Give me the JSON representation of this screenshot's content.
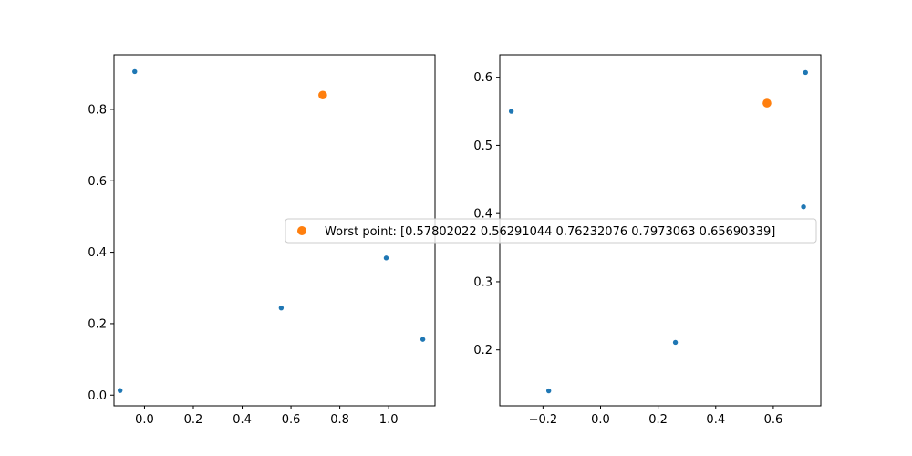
{
  "chart_data": [
    {
      "type": "scatter",
      "xlim": [
        -0.125,
        1.19
      ],
      "ylim": [
        -0.03,
        0.953
      ],
      "xticks": [
        "0.0",
        "0.2",
        "0.4",
        "0.6",
        "0.8",
        "1.0"
      ],
      "yticks": [
        "0.0",
        "0.2",
        "0.4",
        "0.6",
        "0.8"
      ],
      "grid": false,
      "series": [
        {
          "color": "#1f77b4",
          "points": [
            {
              "x": -0.1,
              "y": 0.013
            },
            {
              "x": -0.04,
              "y": 0.906
            },
            {
              "x": 0.56,
              "y": 0.244
            },
            {
              "x": 0.99,
              "y": 0.384
            },
            {
              "x": 1.14,
              "y": 0.156
            }
          ]
        },
        {
          "color": "#ff7f0e",
          "points": [
            {
              "x": 0.73,
              "y": 0.84
            }
          ]
        }
      ]
    },
    {
      "type": "scatter",
      "xlim": [
        -0.35,
        0.765
      ],
      "ylim": [
        0.118,
        0.633
      ],
      "xticks": [
        "-0.2",
        "0.0",
        "0.2",
        "0.4",
        "0.6"
      ],
      "yticks": [
        "0.2",
        "0.3",
        "0.4",
        "0.5",
        "0.6"
      ],
      "grid": false,
      "series": [
        {
          "color": "#1f77b4",
          "points": [
            {
              "x": -0.31,
              "y": 0.55
            },
            {
              "x": -0.18,
              "y": 0.14
            },
            {
              "x": 0.26,
              "y": 0.211
            },
            {
              "x": 0.705,
              "y": 0.41
            },
            {
              "x": 0.712,
              "y": 0.607
            }
          ]
        },
        {
          "color": "#ff7f0e",
          "points": [
            {
              "x": 0.578,
              "y": 0.562
            }
          ]
        }
      ]
    }
  ],
  "legend": {
    "label": "Worst point: [0.57802022 0.56291044 0.76232076 0.7973063  0.65690339]",
    "color": "#ff7f0e",
    "placement": "center-right of left axes"
  }
}
